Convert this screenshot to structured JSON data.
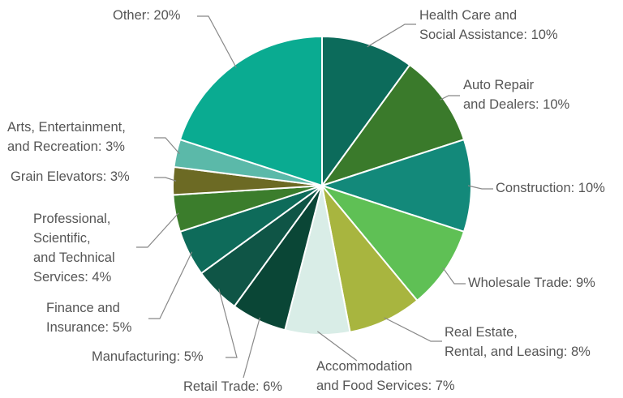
{
  "chart_data": {
    "type": "pie",
    "categories": [
      [
        "Health Care and",
        "Social Assistance: 10%"
      ],
      [
        "Auto Repair",
        "and Dealers: 10%"
      ],
      [
        "Construction: 10%"
      ],
      [
        "Wholesale Trade: 9%"
      ],
      [
        "Real Estate,",
        "Rental, and Leasing: 8%"
      ],
      [
        "Accommodation",
        "and Food Services: 7%"
      ],
      [
        "Retail Trade: 6%"
      ],
      [
        "Manufacturing: 5%"
      ],
      [
        "Finance and",
        "Insurance: 5%"
      ],
      [
        "Professional,",
        "Scientific,",
        "and Technical",
        "Services: 4%"
      ],
      [
        "Grain Elevators: 3%"
      ],
      [
        "Arts, Entertainment,",
        "and Recreation: 3%"
      ],
      [
        "Other: 20%"
      ]
    ],
    "values": [
      10,
      10,
      10,
      9,
      8,
      7,
      6,
      5,
      5,
      4,
      3,
      3,
      20
    ],
    "colors": [
      "#0c6b5b",
      "#3a7a2b",
      "#13897a",
      "#5fc055",
      "#a8b53f",
      "#d9ede7",
      "#0a4636",
      "#0f5546",
      "#0e6b5a",
      "#3b7d2c",
      "#6c6a24",
      "#5bb9a9",
      "#0aab91"
    ]
  }
}
